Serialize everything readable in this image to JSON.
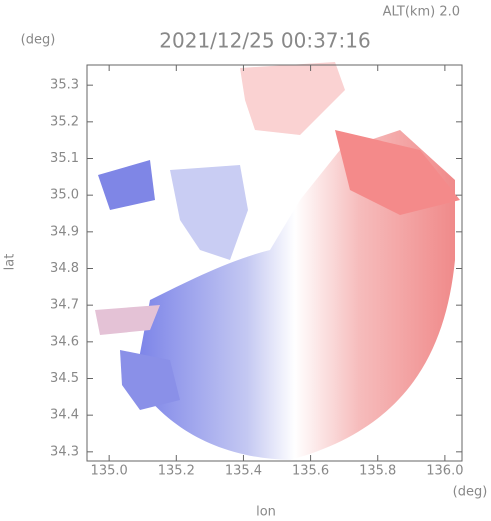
{
  "chart_data": {
    "type": "map",
    "altitude_label": "ALT(km) 2.0",
    "title": "2021/12/25 00:37:16",
    "y_unit": "(deg)",
    "x_unit": "(deg)",
    "ylabel": "lat",
    "xlabel": "lon",
    "xlim": [
      134.934,
      136.051
    ],
    "ylim": [
      34.275,
      35.355
    ],
    "xticks": [
      {
        "value": 135,
        "label": "135.0"
      },
      135.2,
      135.4,
      135.6,
      135.8,
      {
        "value": 136,
        "label": "136.0"
      }
    ],
    "yticks": [
      {
        "value": 34.3,
        "label": "34.3"
      },
      34.4,
      34.5,
      34.6,
      34.7,
      34.8,
      {
        "value": 34.9,
        "label": "34.9"
      },
      {
        "value": 35,
        "label": "35.0"
      },
      35.1,
      35.2,
      35.3
    ]
  }
}
